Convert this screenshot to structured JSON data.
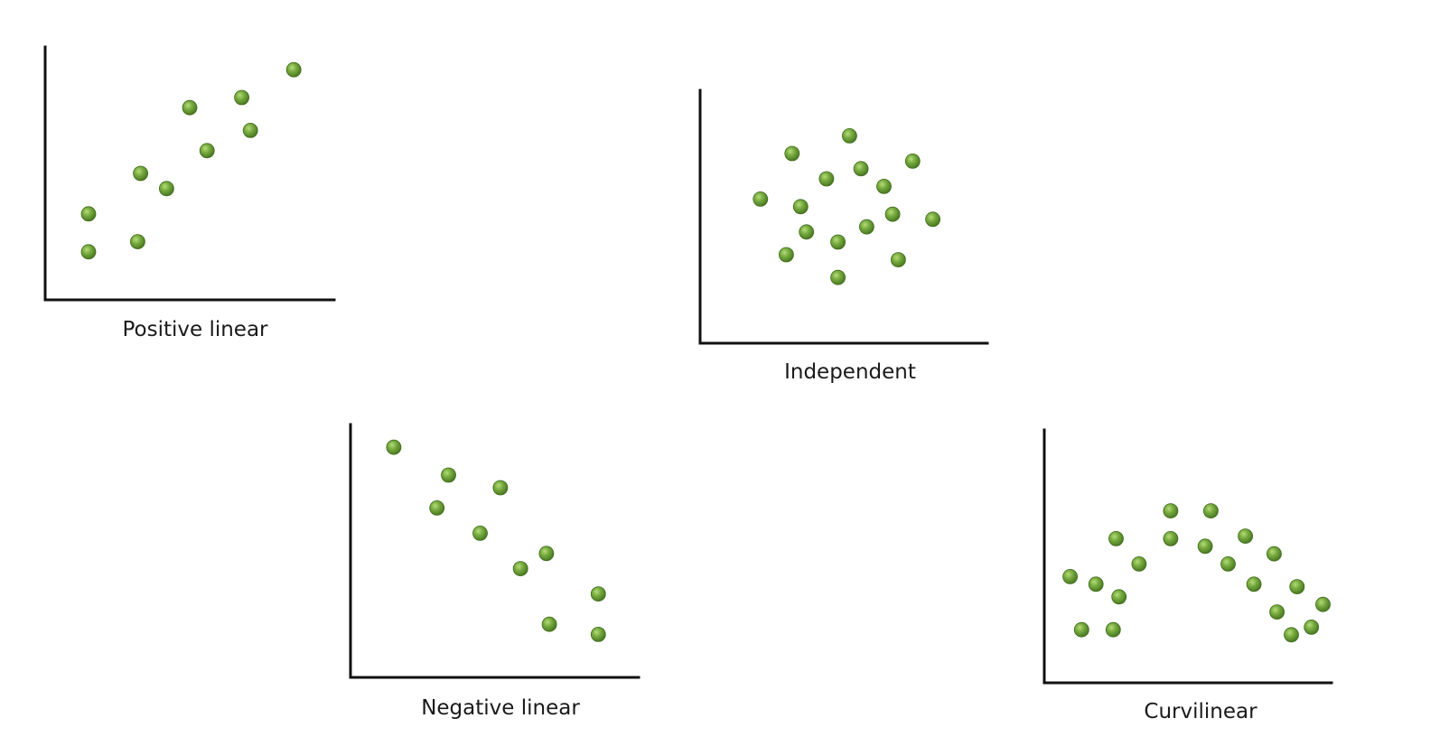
{
  "colors": {
    "dot": "#6fa33a",
    "dot_highlight": "#a8d46a",
    "dot_edge": "#3f6b1c",
    "axis": "#111111"
  },
  "chart_data": [
    {
      "type": "scatter",
      "title": "Positive linear",
      "xlabel": "",
      "ylabel": "",
      "xlim": [
        0,
        1
      ],
      "ylim": [
        0,
        1
      ],
      "points": [
        {
          "x": 0.15,
          "y": 0.34
        },
        {
          "x": 0.15,
          "y": 0.19
        },
        {
          "x": 0.32,
          "y": 0.23
        },
        {
          "x": 0.33,
          "y": 0.5
        },
        {
          "x": 0.42,
          "y": 0.44
        },
        {
          "x": 0.5,
          "y": 0.76
        },
        {
          "x": 0.56,
          "y": 0.59
        },
        {
          "x": 0.68,
          "y": 0.8
        },
        {
          "x": 0.71,
          "y": 0.67
        },
        {
          "x": 0.86,
          "y": 0.91
        }
      ]
    },
    {
      "type": "scatter",
      "title": "Independent",
      "xlabel": "",
      "ylabel": "",
      "xlim": [
        0,
        1
      ],
      "ylim": [
        0,
        1
      ],
      "points": [
        {
          "x": 0.21,
          "y": 0.57
        },
        {
          "x": 0.32,
          "y": 0.75
        },
        {
          "x": 0.52,
          "y": 0.82
        },
        {
          "x": 0.44,
          "y": 0.65
        },
        {
          "x": 0.56,
          "y": 0.69
        },
        {
          "x": 0.64,
          "y": 0.62
        },
        {
          "x": 0.74,
          "y": 0.72
        },
        {
          "x": 0.35,
          "y": 0.54
        },
        {
          "x": 0.37,
          "y": 0.44
        },
        {
          "x": 0.48,
          "y": 0.4
        },
        {
          "x": 0.58,
          "y": 0.46
        },
        {
          "x": 0.67,
          "y": 0.51
        },
        {
          "x": 0.81,
          "y": 0.49
        },
        {
          "x": 0.3,
          "y": 0.35
        },
        {
          "x": 0.48,
          "y": 0.26
        },
        {
          "x": 0.69,
          "y": 0.33
        }
      ]
    },
    {
      "type": "scatter",
      "title": "Negative linear",
      "xlabel": "",
      "ylabel": "",
      "xlim": [
        0,
        1
      ],
      "ylim": [
        0,
        1
      ],
      "points": [
        {
          "x": 0.15,
          "y": 0.91
        },
        {
          "x": 0.34,
          "y": 0.8
        },
        {
          "x": 0.52,
          "y": 0.75
        },
        {
          "x": 0.3,
          "y": 0.67
        },
        {
          "x": 0.45,
          "y": 0.57
        },
        {
          "x": 0.59,
          "y": 0.43
        },
        {
          "x": 0.68,
          "y": 0.49
        },
        {
          "x": 0.86,
          "y": 0.33
        },
        {
          "x": 0.69,
          "y": 0.21
        },
        {
          "x": 0.86,
          "y": 0.17
        }
      ]
    },
    {
      "type": "scatter",
      "title": "Curvilinear",
      "xlabel": "",
      "ylabel": "",
      "xlim": [
        0,
        1
      ],
      "ylim": [
        0,
        1
      ],
      "points": [
        {
          "x": 0.09,
          "y": 0.42
        },
        {
          "x": 0.13,
          "y": 0.21
        },
        {
          "x": 0.18,
          "y": 0.39
        },
        {
          "x": 0.24,
          "y": 0.21
        },
        {
          "x": 0.25,
          "y": 0.57
        },
        {
          "x": 0.26,
          "y": 0.34
        },
        {
          "x": 0.33,
          "y": 0.47
        },
        {
          "x": 0.44,
          "y": 0.68
        },
        {
          "x": 0.44,
          "y": 0.57
        },
        {
          "x": 0.56,
          "y": 0.54
        },
        {
          "x": 0.58,
          "y": 0.68
        },
        {
          "x": 0.64,
          "y": 0.47
        },
        {
          "x": 0.7,
          "y": 0.58
        },
        {
          "x": 0.73,
          "y": 0.39
        },
        {
          "x": 0.8,
          "y": 0.51
        },
        {
          "x": 0.81,
          "y": 0.28
        },
        {
          "x": 0.88,
          "y": 0.38
        },
        {
          "x": 0.86,
          "y": 0.19
        },
        {
          "x": 0.93,
          "y": 0.22
        },
        {
          "x": 0.97,
          "y": 0.31
        }
      ]
    }
  ]
}
